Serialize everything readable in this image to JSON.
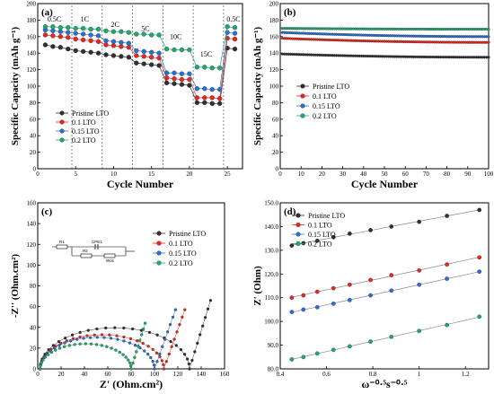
{
  "colors": {
    "pristine": "#303030",
    "lto01": "#e8251f",
    "lto015": "#2a6fd6",
    "lto02": "#1faa6b"
  },
  "chart_data": [
    {
      "type": "scatter",
      "panel": "(a)",
      "xlabel": "Cycle Number",
      "ylabel": "Specific Capacity (mAh g⁻¹)",
      "xlim": [
        0,
        27
      ],
      "ylim": [
        0,
        200
      ],
      "xticks": [
        0,
        5,
        10,
        15,
        20,
        25
      ],
      "yticks": [
        0,
        20,
        40,
        60,
        80,
        100,
        120,
        140,
        160,
        180,
        200
      ],
      "rate_dividers": [
        4.5,
        8.5,
        12.5,
        16.5,
        20.5,
        24.5
      ],
      "rate_labels": [
        {
          "text": "0.5C",
          "x": 2.2,
          "y": 178
        },
        {
          "text": "1C",
          "x": 6.2,
          "y": 178
        },
        {
          "text": "2C",
          "x": 10.2,
          "y": 172
        },
        {
          "text": "5C",
          "x": 14.2,
          "y": 167
        },
        {
          "text": "10C",
          "x": 18.2,
          "y": 157
        },
        {
          "text": "15C",
          "x": 22.2,
          "y": 136
        },
        {
          "text": "0.5C",
          "x": 25.8,
          "y": 178
        }
      ],
      "legend": [
        "Pristine LTO",
        "0.1 LTO",
        "0.15 LTO",
        "0.2 LTO"
      ],
      "series": [
        {
          "name": "Pristine LTO",
          "color": "#303030",
          "x": [
            1,
            2,
            3,
            4,
            5,
            6,
            7,
            8,
            9,
            10,
            11,
            12,
            13,
            14,
            15,
            16,
            17,
            18,
            19,
            20,
            21,
            22,
            23,
            24,
            25,
            26
          ],
          "y": [
            150,
            148,
            147,
            145,
            143,
            142,
            141,
            140,
            138,
            137,
            136,
            135,
            128,
            127,
            126,
            125,
            104,
            103,
            102,
            101,
            80,
            80,
            79,
            79,
            146,
            145
          ]
        },
        {
          "name": "0.1 LTO",
          "color": "#e8251f",
          "x": [
            1,
            2,
            3,
            4,
            5,
            6,
            7,
            8,
            9,
            10,
            11,
            12,
            13,
            14,
            15,
            16,
            17,
            18,
            19,
            20,
            21,
            22,
            23,
            24,
            25,
            26
          ],
          "y": [
            162,
            161,
            160,
            159,
            157,
            156,
            155,
            154,
            150,
            149,
            148,
            147,
            137,
            136,
            135,
            134,
            110,
            109,
            108,
            108,
            86,
            86,
            86,
            85,
            158,
            157
          ]
        },
        {
          "name": "0.15 LTO",
          "color": "#2a6fd6",
          "x": [
            1,
            2,
            3,
            4,
            5,
            6,
            7,
            8,
            9,
            10,
            11,
            12,
            13,
            14,
            15,
            16,
            17,
            18,
            19,
            20,
            21,
            22,
            23,
            24,
            25,
            26
          ],
          "y": [
            168,
            167,
            166,
            165,
            164,
            163,
            162,
            161,
            155,
            154,
            153,
            152,
            143,
            142,
            141,
            140,
            116,
            116,
            115,
            115,
            97,
            97,
            96,
            96,
            165,
            164
          ]
        },
        {
          "name": "0.2 LTO",
          "color": "#1faa6b",
          "x": [
            1,
            2,
            3,
            4,
            5,
            6,
            7,
            8,
            9,
            10,
            11,
            12,
            13,
            14,
            15,
            16,
            17,
            18,
            19,
            20,
            21,
            22,
            23,
            24,
            25,
            26
          ],
          "y": [
            172,
            172,
            171,
            171,
            170,
            170,
            169,
            169,
            167,
            166,
            166,
            165,
            163,
            163,
            162,
            162,
            145,
            144,
            144,
            144,
            123,
            123,
            122,
            122,
            172,
            171
          ]
        }
      ]
    },
    {
      "type": "scatter",
      "panel": "(b)",
      "xlabel": "Cycle Number",
      "ylabel": "Specific Capacity (mAh g⁻¹)",
      "xlim": [
        0,
        100
      ],
      "ylim": [
        0,
        200
      ],
      "xticks": [
        0,
        10,
        20,
        30,
        40,
        50,
        60,
        70,
        80,
        90,
        100
      ],
      "yticks": [
        0,
        20,
        40,
        60,
        80,
        100,
        120,
        140,
        160,
        180,
        200
      ],
      "legend": [
        "Pristine LTO",
        "0.1 LTO",
        "0.15 LTO",
        "0.2 LTO"
      ],
      "series": [
        {
          "name": "Pristine LTO",
          "color": "#303030",
          "start": 139,
          "end": 135
        },
        {
          "name": "0.1 LTO",
          "color": "#e8251f",
          "start": 158,
          "end": 153
        },
        {
          "name": "0.15 LTO",
          "color": "#2a6fd6",
          "start": 165,
          "end": 160
        },
        {
          "name": "0.2 LTO",
          "color": "#1faa6b",
          "start": 170,
          "end": 169
        }
      ]
    },
    {
      "type": "scatter",
      "panel": "(c)",
      "xlabel": "Z' (Ohm.cm²)",
      "ylabel": "-Z'' (Ohm.cm²)",
      "xlim": [
        0,
        160
      ],
      "ylim": [
        0,
        160
      ],
      "xticks": [
        0,
        20,
        40,
        60,
        80,
        100,
        120,
        140,
        160
      ],
      "yticks": [
        0,
        20,
        40,
        60,
        80,
        100,
        120,
        140,
        160
      ],
      "legend": [
        "Pristine LTO",
        "0.1 LTO",
        "0.15 LTO",
        "0.2 LTO"
      ],
      "circuit_labels": [
        "R1",
        "CPE1",
        "R2",
        "Wo1"
      ],
      "series": [
        {
          "name": "Pristine LTO",
          "color": "#303030",
          "semicircle": [
            2,
            130
          ],
          "tail_end": [
            148,
            66
          ]
        },
        {
          "name": "0.1 LTO",
          "color": "#e8251f",
          "semicircle": [
            2,
            108
          ],
          "tail_end": [
            126,
            57
          ]
        },
        {
          "name": "0.15 LTO",
          "color": "#2a6fd6",
          "semicircle": [
            2,
            100
          ],
          "tail_end": [
            118,
            57
          ]
        },
        {
          "name": "0.2 LTO",
          "color": "#1faa6b",
          "semicircle": [
            2,
            80
          ],
          "tail_end": [
            92,
            44
          ]
        }
      ]
    },
    {
      "type": "scatter",
      "panel": "(d)",
      "xlabel": "ω⁻⁰·⁵s⁻⁰·⁵",
      "ylabel": "Z' (Ohm)",
      "xlim": [
        0.4,
        1.3
      ],
      "ylim": [
        80,
        150
      ],
      "xticks": [
        0.4,
        0.6,
        0.8,
        1.0,
        1.2
      ],
      "yticks": [
        80,
        90,
        100,
        110,
        120,
        130,
        140,
        150
      ],
      "legend": [
        "Pristine LTO",
        "0.1 LTO",
        "0.15 LTO",
        "0.2 LTO"
      ],
      "x": [
        0.45,
        0.5,
        0.56,
        0.63,
        0.7,
        0.79,
        0.88,
        1.0,
        1.12,
        1.26
      ],
      "series": [
        {
          "name": "Pristine LTO",
          "color": "#303030",
          "y": [
            132,
            133,
            134,
            135.5,
            137,
            138.5,
            140,
            142,
            144.5,
            147
          ]
        },
        {
          "name": "0.1 LTO",
          "color": "#e8251f",
          "y": [
            110,
            111,
            112.5,
            114,
            115.5,
            117.5,
            119.5,
            121.5,
            124,
            127
          ]
        },
        {
          "name": "0.15 LTO",
          "color": "#2a6fd6",
          "y": [
            104,
            105,
            106,
            107.5,
            109,
            111,
            113,
            115.5,
            118,
            121
          ]
        },
        {
          "name": "0.2 LTO",
          "color": "#1faa6b",
          "y": [
            84,
            85,
            86.5,
            88,
            89.5,
            91.5,
            93.5,
            96,
            98.5,
            102
          ]
        }
      ]
    }
  ]
}
